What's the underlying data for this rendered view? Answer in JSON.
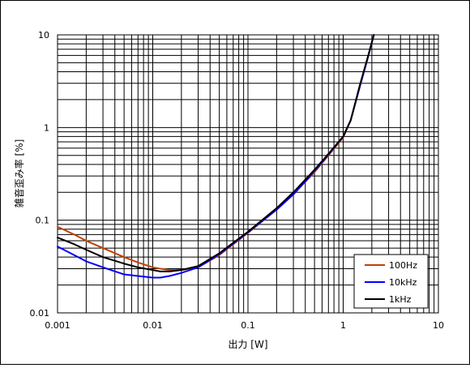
{
  "chart_data": {
    "type": "line",
    "title": "",
    "xlabel": "出力 [W]",
    "ylabel": "雑音歪み率 [%]",
    "x_scale": "log",
    "y_scale": "log",
    "xlim": [
      0.001,
      10
    ],
    "ylim": [
      0.01,
      10
    ],
    "grid": true,
    "legend_position": "lower-right",
    "x_ticks": [
      "0.001",
      "0.01",
      "0.1",
      "1",
      "10"
    ],
    "y_ticks": [
      "0.01",
      "0.1",
      "1",
      "10"
    ],
    "series": [
      {
        "name": "100Hz",
        "color": "#c04000",
        "x": [
          0.001,
          0.0015,
          0.002,
          0.003,
          0.005,
          0.007,
          0.01,
          0.012,
          0.015,
          0.02,
          0.03,
          0.05,
          0.07,
          0.1,
          0.2,
          0.3,
          0.5,
          0.7,
          1.0,
          1.2,
          1.5,
          1.8,
          2.1
        ],
        "y": [
          0.085,
          0.07,
          0.06,
          0.05,
          0.04,
          0.035,
          0.031,
          0.03,
          0.029,
          0.029,
          0.031,
          0.042,
          0.055,
          0.073,
          0.13,
          0.19,
          0.33,
          0.5,
          0.78,
          1.2,
          2.8,
          5.5,
          10.0
        ]
      },
      {
        "name": "10kHz",
        "color": "#0000ff",
        "x": [
          0.001,
          0.0015,
          0.002,
          0.003,
          0.005,
          0.007,
          0.01,
          0.012,
          0.015,
          0.02,
          0.03,
          0.05,
          0.07,
          0.1,
          0.2,
          0.3,
          0.5,
          0.7,
          1.0,
          1.2,
          1.5,
          1.8,
          2.1
        ],
        "y": [
          0.052,
          0.042,
          0.036,
          0.031,
          0.026,
          0.025,
          0.024,
          0.024,
          0.025,
          0.027,
          0.031,
          0.043,
          0.056,
          0.074,
          0.13,
          0.19,
          0.34,
          0.51,
          0.8,
          1.2,
          2.8,
          5.5,
          10.0
        ]
      },
      {
        "name": "1kHz",
        "color": "#000000",
        "x": [
          0.001,
          0.0015,
          0.002,
          0.003,
          0.005,
          0.007,
          0.01,
          0.012,
          0.015,
          0.02,
          0.03,
          0.05,
          0.07,
          0.1,
          0.2,
          0.3,
          0.5,
          0.7,
          1.0,
          1.2,
          1.5,
          1.8,
          2.1
        ],
        "y": [
          0.065,
          0.055,
          0.048,
          0.04,
          0.034,
          0.031,
          0.029,
          0.028,
          0.028,
          0.029,
          0.032,
          0.044,
          0.057,
          0.075,
          0.135,
          0.2,
          0.35,
          0.52,
          0.8,
          1.2,
          2.9,
          5.6,
          10.0
        ]
      }
    ]
  }
}
